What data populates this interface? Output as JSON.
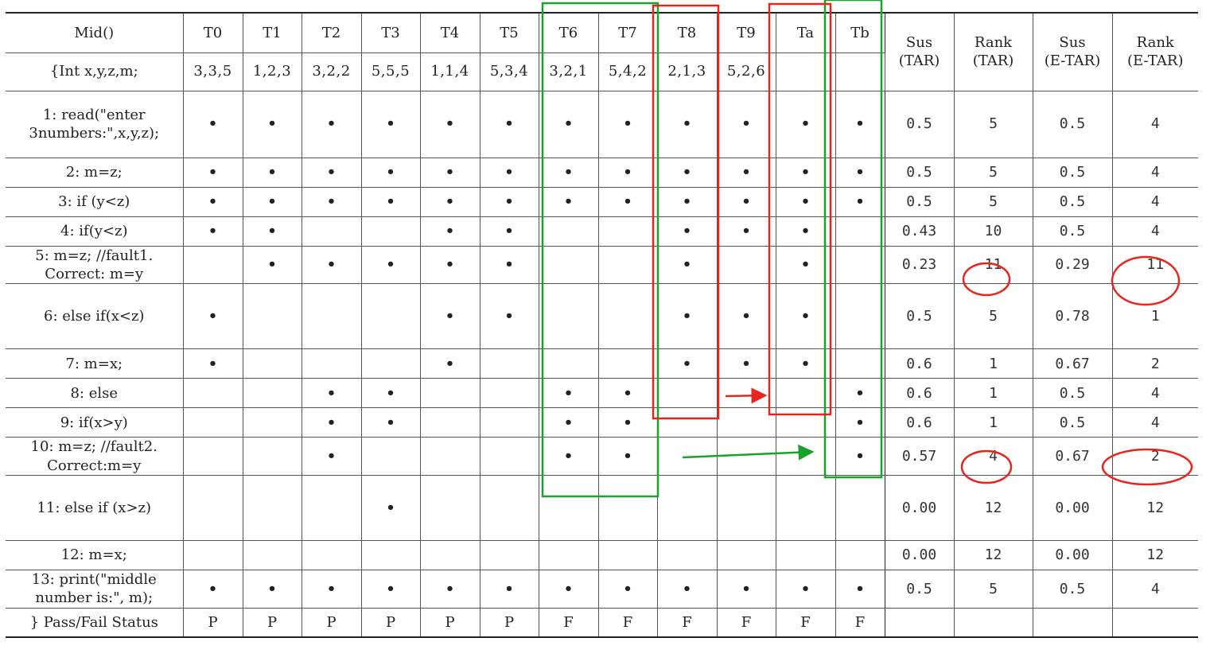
{
  "header": {
    "program_title": "Mid()",
    "program_decl": "{Int x,y,z,m;",
    "tests": [
      "T0",
      "T1",
      "T2",
      "T3",
      "T4",
      "T5",
      "T6",
      "T7",
      "T8",
      "T9",
      "Ta",
      "Tb"
    ],
    "inputs": [
      "3,3,5",
      "1,2,3",
      "3,2,2",
      "5,5,5",
      "1,1,4",
      "5,3,4",
      "3,2,1",
      "5,4,2",
      "2,1,3",
      "5,2,6",
      "",
      ""
    ],
    "sus_tar": "Sus\n(TAR)",
    "rank_tar": "Rank\n(TAR)",
    "sus_etar": "Sus\n(E-TAR)",
    "rank_etar": "Rank\n(E-TAR)"
  },
  "rows": [
    {
      "stmt": "1: read(\"enter\n3numbers:\",x,y,z);",
      "cov": [
        "•",
        "•",
        "•",
        "•",
        "•",
        "•",
        "•",
        "•",
        "•",
        "•",
        "•",
        "•"
      ],
      "sus_tar": "0.5",
      "rank_tar": "5",
      "sus_etar": "0.5",
      "rank_etar": "4"
    },
    {
      "stmt": "2: m=z;",
      "cov": [
        "•",
        "•",
        "•",
        "•",
        "•",
        "•",
        "•",
        "•",
        "•",
        "•",
        "•",
        "•"
      ],
      "sus_tar": "0.5",
      "rank_tar": "5",
      "sus_etar": "0.5",
      "rank_etar": "4"
    },
    {
      "stmt": "3: if (y<z)",
      "cov": [
        "•",
        "•",
        "•",
        "•",
        "•",
        "•",
        "•",
        "•",
        "•",
        "•",
        "•",
        "•"
      ],
      "sus_tar": "0.5",
      "rank_tar": "5",
      "sus_etar": "0.5",
      "rank_etar": "4"
    },
    {
      "stmt": "4: if(y<z)",
      "cov": [
        "•",
        "•",
        "",
        "",
        "•",
        "•",
        "",
        "",
        "•",
        "•",
        "•",
        ""
      ],
      "sus_tar": "0.43",
      "rank_tar": "10",
      "sus_etar": "0.5",
      "rank_etar": "4"
    },
    {
      "stmt": "5: m=z; //fault1.\nCorrect: m=y",
      "cov": [
        "",
        "•",
        "•",
        "•",
        "•",
        "•",
        "",
        "",
        "•",
        "",
        "•",
        ""
      ],
      "sus_tar": "0.23",
      "rank_tar": "11",
      "sus_etar": "0.29",
      "rank_etar": "11"
    },
    {
      "stmt": "6: else if(x<z)",
      "cov": [
        "•",
        "",
        "",
        "",
        "•",
        "•",
        "",
        "",
        "•",
        "•",
        "•",
        ""
      ],
      "sus_tar": "0.5",
      "rank_tar": "5",
      "sus_etar": "0.78",
      "rank_etar": "1"
    },
    {
      "stmt": "7: m=x;",
      "cov": [
        "•",
        "",
        "",
        "",
        "•",
        "",
        "",
        "",
        "•",
        "•",
        "•",
        ""
      ],
      "sus_tar": "0.6",
      "rank_tar": "1",
      "sus_etar": "0.67",
      "rank_etar": "2"
    },
    {
      "stmt": "8: else",
      "cov": [
        "",
        "",
        "•",
        "•",
        "",
        "",
        "•",
        "•",
        "",
        "",
        "",
        "•"
      ],
      "sus_tar": "0.6",
      "rank_tar": "1",
      "sus_etar": "0.5",
      "rank_etar": "4"
    },
    {
      "stmt": "9: if(x>y)",
      "cov": [
        "",
        "",
        "•",
        "•",
        "",
        "",
        "•",
        "•",
        "",
        "",
        "",
        "•"
      ],
      "sus_tar": "0.6",
      "rank_tar": "1",
      "sus_etar": "0.5",
      "rank_etar": "4"
    },
    {
      "stmt": "10: m=z; //fault2.\nCorrect:m=y",
      "cov": [
        "",
        "",
        "•",
        "",
        "",
        "",
        "•",
        "•",
        "",
        "",
        "",
        "•"
      ],
      "sus_tar": "0.57",
      "rank_tar": "4",
      "sus_etar": "0.67",
      "rank_etar": "2"
    },
    {
      "stmt": "11: else if (x>z)",
      "cov": [
        "",
        "",
        "",
        "•",
        "",
        "",
        "",
        "",
        "",
        "",
        "",
        ""
      ],
      "sus_tar": "0.00",
      "rank_tar": "12",
      "sus_etar": "0.00",
      "rank_etar": "12"
    },
    {
      "stmt": "12: m=x;",
      "cov": [
        "",
        "",
        "",
        "",
        "",
        "",
        "",
        "",
        "",
        "",
        "",
        ""
      ],
      "sus_tar": "0.00",
      "rank_tar": "12",
      "sus_etar": "0.00",
      "rank_etar": "12"
    },
    {
      "stmt": "13: print(\"middle\nnumber is:\", m);",
      "cov": [
        "•",
        "•",
        "•",
        "•",
        "•",
        "•",
        "•",
        "•",
        "•",
        "•",
        "•",
        "•"
      ],
      "sus_tar": "0.5",
      "rank_tar": "5",
      "sus_etar": "0.5",
      "rank_etar": "4"
    }
  ],
  "status": {
    "label": "} Pass/Fail Status",
    "values": [
      "P",
      "P",
      "P",
      "P",
      "P",
      "P",
      "F",
      "F",
      "F",
      "F",
      "F",
      "F"
    ]
  },
  "annotations": {
    "green": "#1aa32a",
    "red": "#e8241c"
  }
}
